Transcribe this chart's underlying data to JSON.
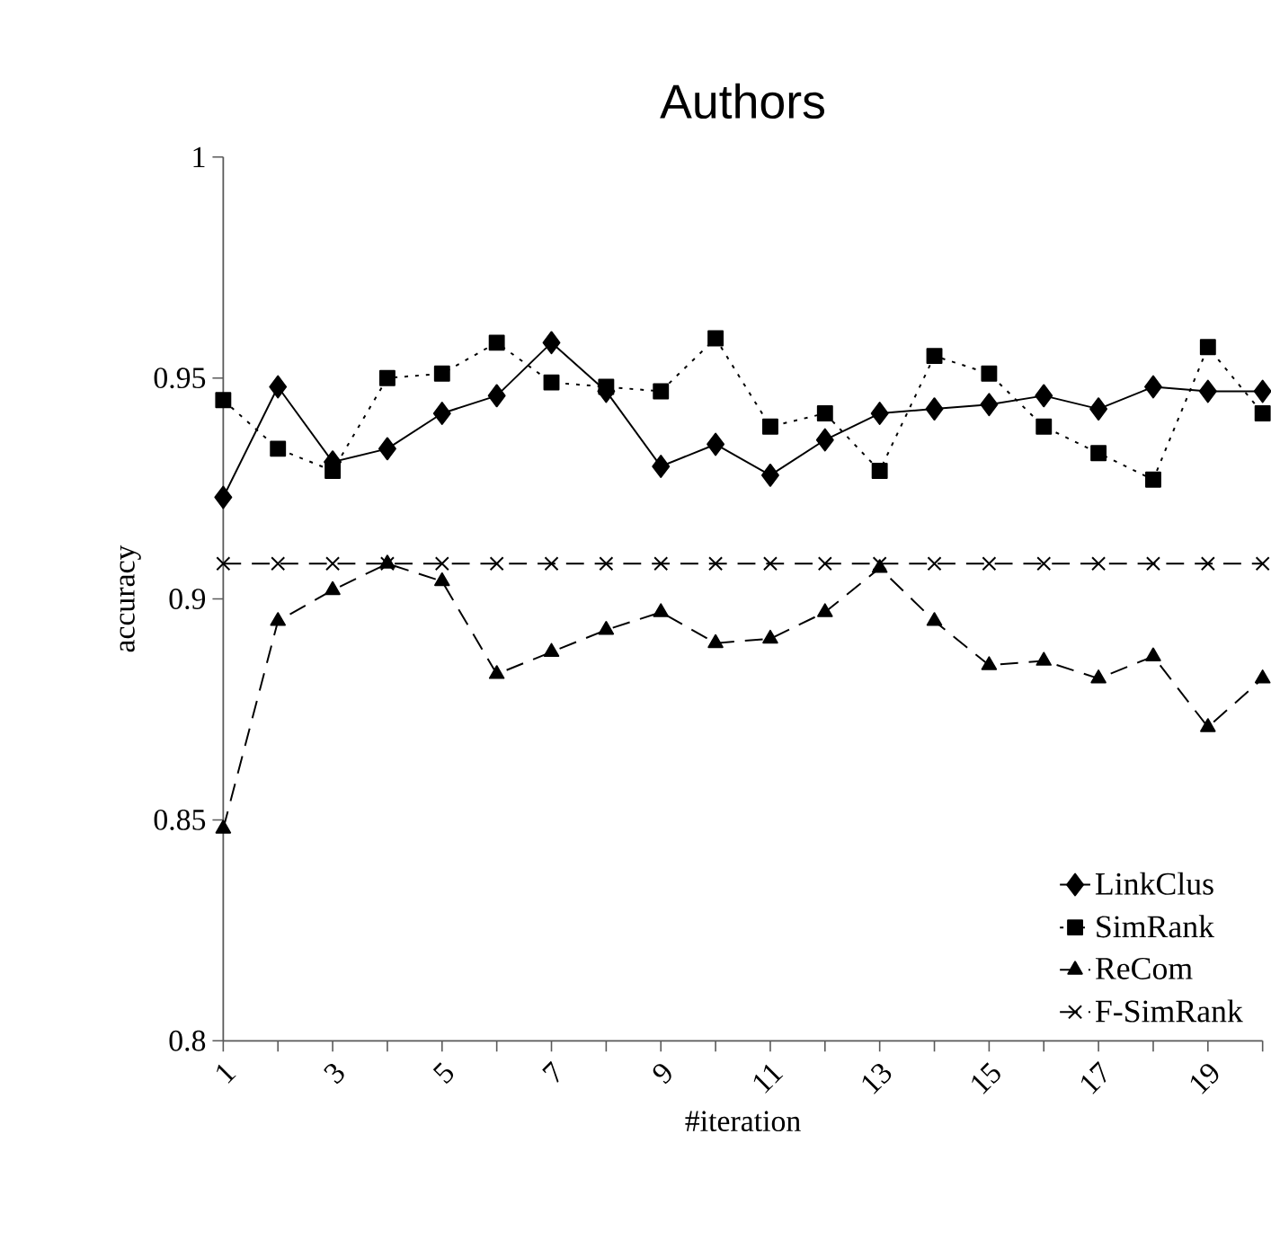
{
  "chart_data": {
    "type": "line",
    "title": "Authors",
    "xlabel": "#iteration",
    "ylabel": "accuracy",
    "categories": [
      "1",
      null,
      "3",
      null,
      "5",
      null,
      "7",
      null,
      "9",
      null,
      "11",
      null,
      "13",
      null,
      "15",
      null,
      "17",
      null,
      "19",
      null
    ],
    "series": [
      {
        "name": "LinkClus",
        "color": "#000000",
        "marker": "diamond",
        "line_style": "solid",
        "values": [
          0.923,
          0.948,
          0.931,
          0.934,
          0.942,
          0.946,
          0.958,
          0.947,
          0.93,
          0.935,
          0.928,
          0.936,
          0.942,
          0.943,
          0.944,
          0.946,
          0.943,
          0.948,
          0.947,
          0.947
        ]
      },
      {
        "name": "SimRank",
        "color": "#000000",
        "marker": "square",
        "line_style": "dotted",
        "values": [
          0.945,
          0.934,
          0.929,
          0.95,
          0.951,
          0.958,
          0.949,
          0.948,
          0.947,
          0.959,
          0.939,
          0.942,
          0.929,
          0.955,
          0.951,
          0.939,
          0.933,
          0.927,
          0.957,
          0.942
        ]
      },
      {
        "name": "ReCom",
        "color": "#000000",
        "marker": "triangle",
        "line_style": "dashed",
        "values": [
          0.848,
          0.895,
          0.902,
          0.908,
          0.904,
          0.883,
          0.888,
          0.893,
          0.897,
          0.89,
          0.891,
          0.897,
          0.907,
          0.895,
          0.885,
          0.886,
          0.882,
          0.887,
          0.871,
          0.882
        ]
      },
      {
        "name": "F-SimRank",
        "color": "#000000",
        "marker": "cross",
        "line_style": "dashed",
        "values": [
          0.908,
          0.908,
          0.908,
          0.908,
          0.908,
          0.908,
          0.908,
          0.908,
          0.908,
          0.908,
          0.908,
          0.908,
          0.908,
          0.908,
          0.908,
          0.908,
          0.908,
          0.908,
          0.908,
          0.908
        ]
      }
    ],
    "ylim": [
      0.8,
      1
    ],
    "yticks": [
      0.8,
      0.85,
      0.9,
      0.95,
      1
    ],
    "grid": false,
    "legend": "bottom right"
  }
}
